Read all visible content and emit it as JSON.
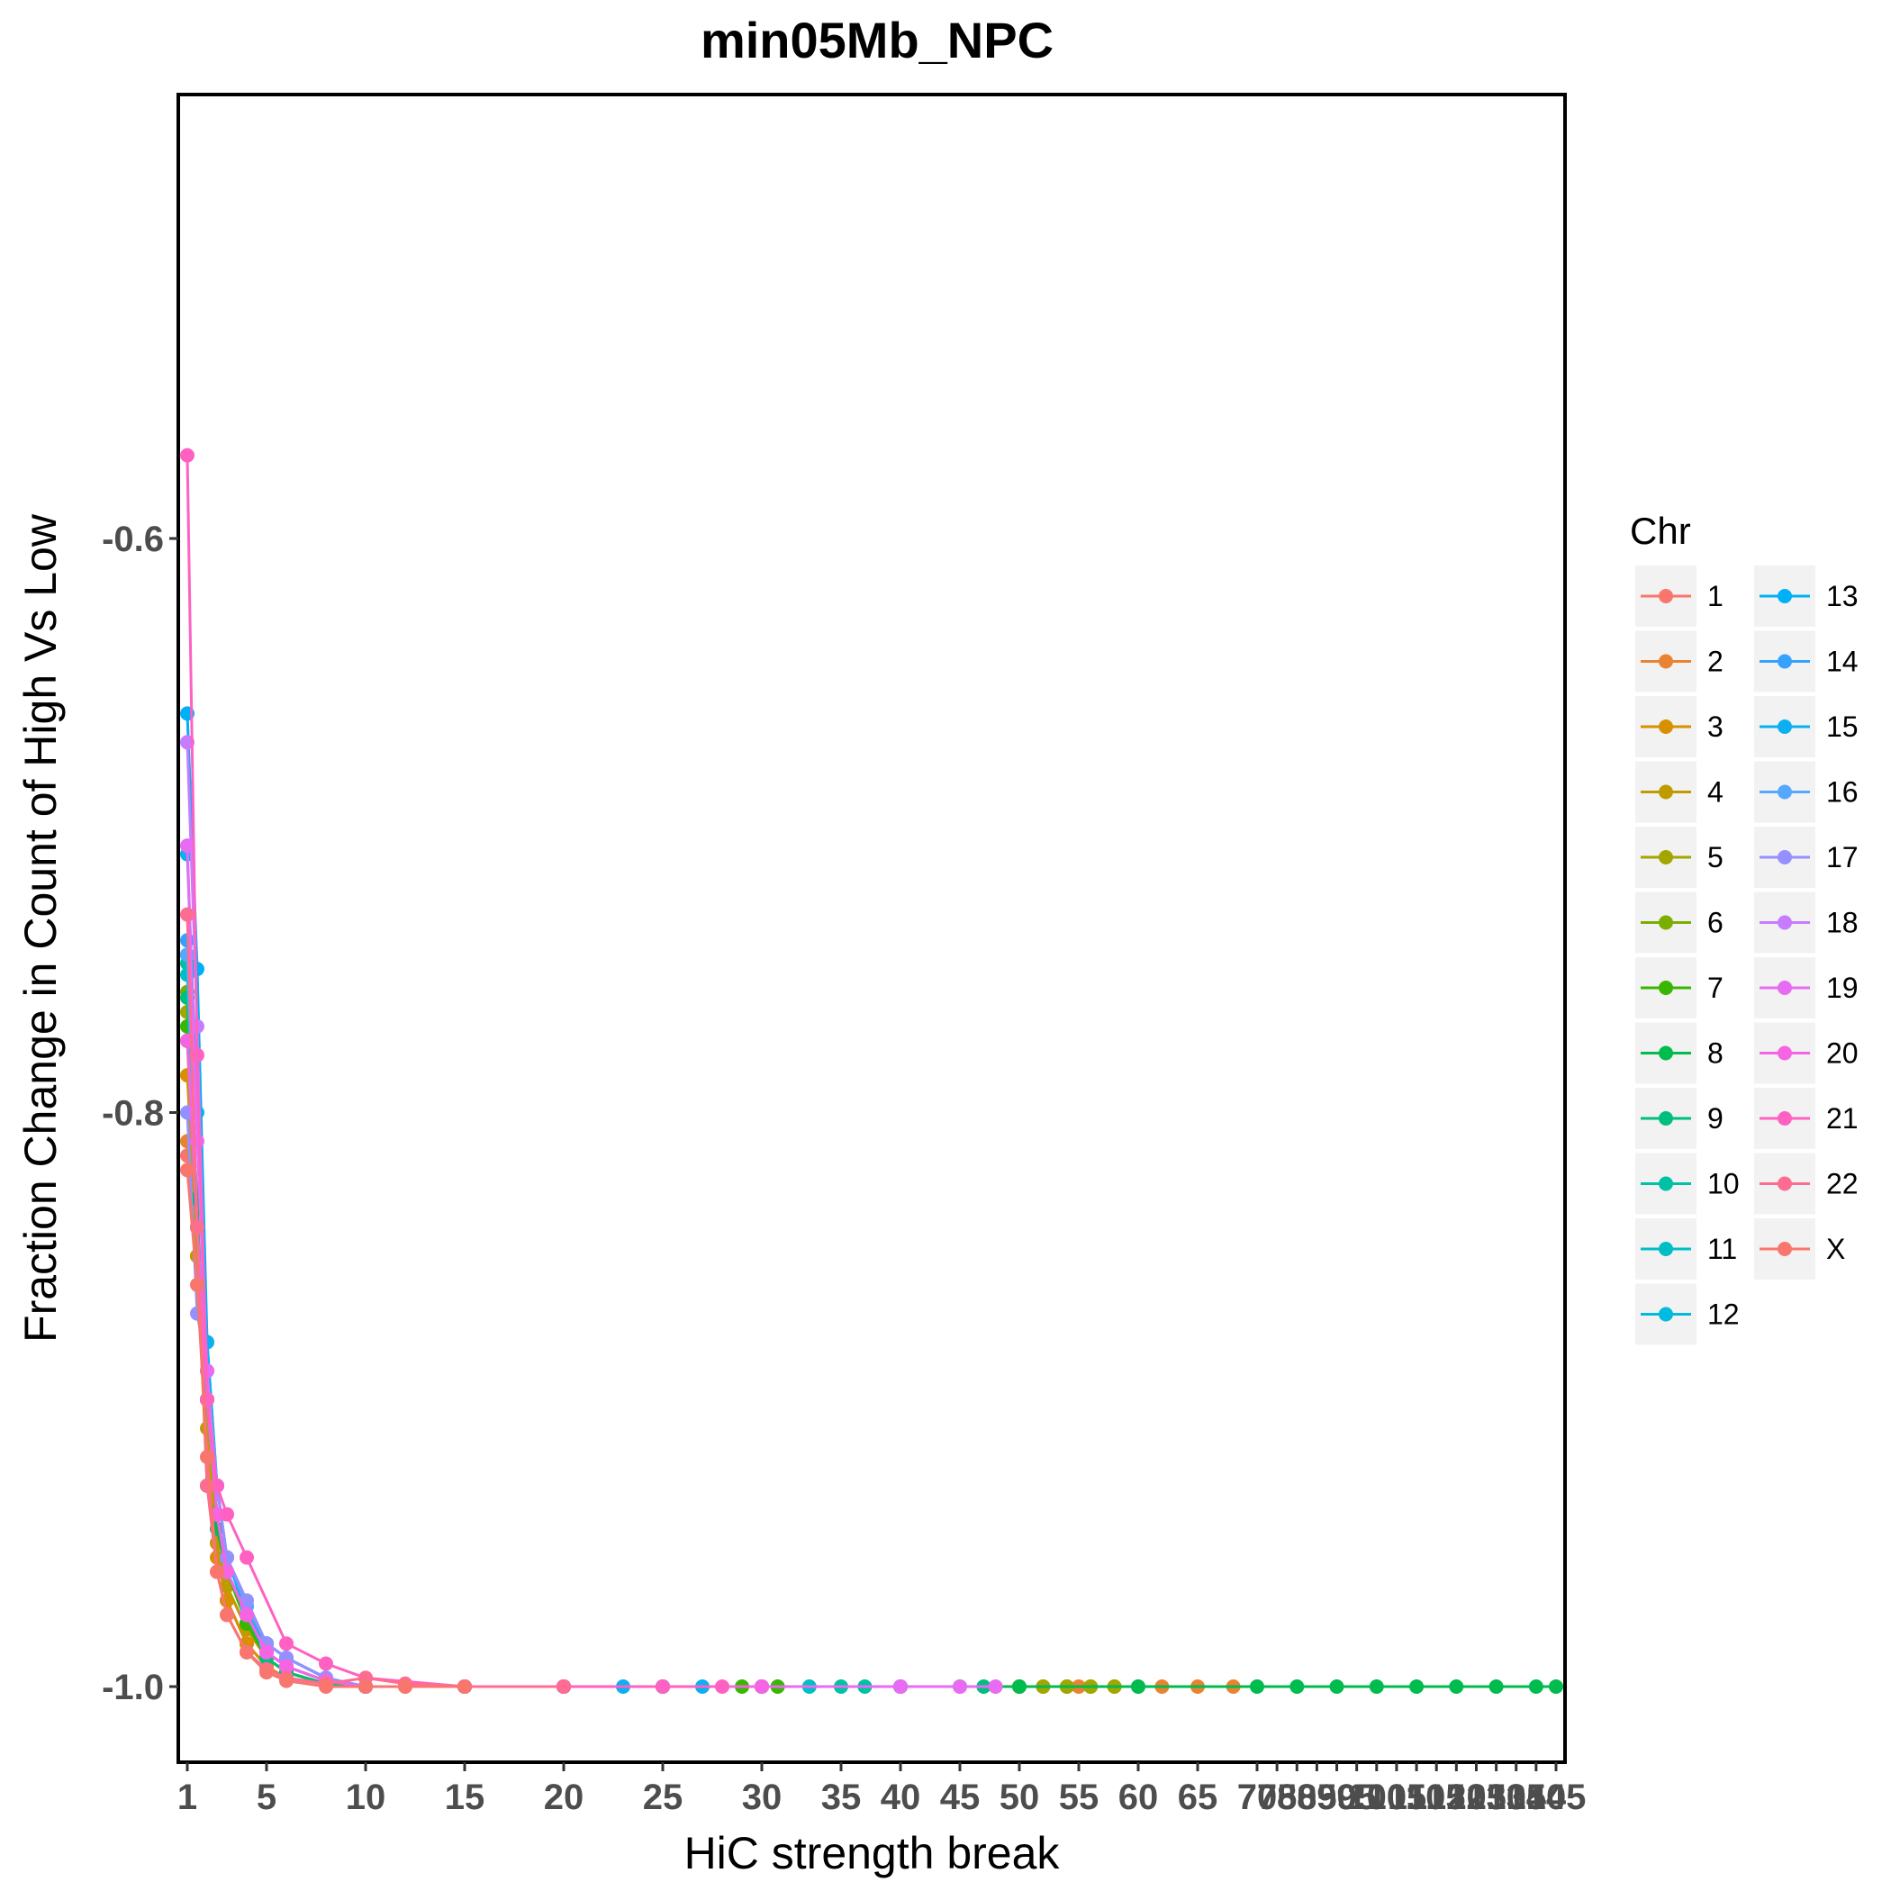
{
  "chart_data": {
    "type": "line",
    "title": "min05Mb_NPC",
    "xlabel": "HiC strength break",
    "ylabel": "Fraction Change in Count of High Vs Low",
    "ylim": [
      -1.026,
      -0.545
    ],
    "y_ticks": [
      -1.0,
      -0.8,
      -0.6
    ],
    "y_tick_labels": [
      "-1.0",
      "-0.8",
      "-0.6"
    ],
    "x_ticks": [
      1,
      5,
      10,
      15,
      20,
      25,
      30,
      35,
      40,
      45,
      50,
      55,
      60,
      65,
      70,
      75,
      80,
      85,
      90,
      95,
      100,
      105,
      110,
      115,
      120,
      125,
      130,
      135,
      140,
      145
    ],
    "x_tick_labels": [
      "1",
      "5",
      "10",
      "15",
      "20",
      "25",
      "30",
      "35",
      "40",
      "45",
      "50",
      "55",
      "60",
      "65",
      "70",
      "75",
      "80",
      "85",
      "90",
      "95",
      "100",
      "105",
      "110",
      "115",
      "120",
      "125",
      "130",
      "135",
      "140",
      "145"
    ],
    "grid": false,
    "legend": {
      "title": "Chr",
      "position": "right",
      "columns": 2
    },
    "series": [
      {
        "name": "1",
        "color": "#F8766D",
        "x": [
          1,
          1.5,
          2,
          2.5,
          3,
          4,
          5,
          6,
          8,
          10,
          12,
          15
        ],
        "y": [
          -0.815,
          -0.85,
          -0.9,
          -0.95,
          -0.97,
          -0.985,
          -0.993,
          -0.997,
          -0.999,
          -1.0,
          -1.0,
          -1.0
        ]
      },
      {
        "name": "2",
        "color": "#EA8331",
        "x": [
          1,
          1.5,
          2,
          2.5,
          3,
          4,
          5,
          6,
          8,
          10,
          15,
          20,
          30,
          40,
          50,
          55,
          60,
          62,
          65,
          68
        ],
        "y": [
          -0.81,
          -0.85,
          -0.9,
          -0.95,
          -0.965,
          -0.98,
          -0.99,
          -0.995,
          -0.999,
          -1.0,
          -1.0,
          -1.0,
          -1.0,
          -1.0,
          -1.0,
          -1.0,
          -1.0,
          -1.0,
          -1.0,
          -1.0
        ]
      },
      {
        "name": "3",
        "color": "#D89000",
        "x": [
          1,
          1.5,
          2,
          2.5,
          3,
          4,
          5,
          6,
          8,
          10,
          15,
          20
        ],
        "y": [
          -0.787,
          -0.85,
          -0.93,
          -0.955,
          -0.97,
          -0.985,
          -0.993,
          -0.997,
          -0.999,
          -1.0,
          -1.0,
          -1.0
        ]
      },
      {
        "name": "4",
        "color": "#C09B00",
        "x": [
          1,
          1.5,
          2,
          2.5,
          3,
          4,
          5,
          6,
          8,
          10,
          15,
          20,
          30,
          40,
          50,
          52,
          54,
          56,
          58
        ],
        "y": [
          -0.775,
          -0.85,
          -0.91,
          -0.95,
          -0.965,
          -0.98,
          -0.99,
          -0.995,
          -0.999,
          -1.0,
          -1.0,
          -1.0,
          -1.0,
          -1.0,
          -1.0,
          -1.0,
          -1.0,
          -1.0,
          -1.0
        ]
      },
      {
        "name": "5",
        "color": "#A3A500",
        "x": [
          1,
          1.5,
          2,
          2.5,
          3,
          4,
          5,
          6,
          8,
          10,
          15,
          20,
          30,
          40,
          50,
          52,
          54,
          56,
          58
        ],
        "y": [
          -0.765,
          -0.84,
          -0.9,
          -0.945,
          -0.96,
          -0.978,
          -0.99,
          -0.995,
          -0.999,
          -1.0,
          -1.0,
          -1.0,
          -1.0,
          -1.0,
          -1.0,
          -1.0,
          -1.0,
          -1.0,
          -1.0
        ]
      },
      {
        "name": "6",
        "color": "#7CAE00",
        "x": [
          1,
          1.5,
          2,
          2.5,
          3,
          4,
          5,
          6,
          8,
          10,
          15,
          20,
          25,
          30
        ],
        "y": [
          -0.758,
          -0.84,
          -0.9,
          -0.94,
          -0.96,
          -0.978,
          -0.99,
          -0.995,
          -0.999,
          -1.0,
          -1.0,
          -1.0,
          -1.0,
          -1.0
        ]
      },
      {
        "name": "7",
        "color": "#39B600",
        "x": [
          1,
          1.5,
          2,
          2.5,
          3,
          4,
          5,
          6,
          8,
          10,
          15,
          20,
          25,
          29,
          31
        ],
        "y": [
          -0.77,
          -0.84,
          -0.9,
          -0.94,
          -0.96,
          -0.978,
          -0.99,
          -0.995,
          -0.999,
          -1.0,
          -1.0,
          -1.0,
          -1.0,
          -1.0,
          -1.0
        ]
      },
      {
        "name": "8",
        "color": "#00BB4E",
        "x": [
          1,
          1.5,
          2,
          2.5,
          3,
          4,
          5,
          6,
          8,
          10,
          15,
          20,
          30,
          40,
          50,
          60,
          70,
          80,
          90,
          100,
          110,
          120,
          130,
          140,
          145
        ],
        "y": [
          -0.775,
          -0.83,
          -0.93,
          -0.945,
          -0.96,
          -0.975,
          -0.985,
          -0.99,
          -0.997,
          -1.0,
          -1.0,
          -1.0,
          -1.0,
          -1.0,
          -1.0,
          -1.0,
          -1.0,
          -1.0,
          -1.0,
          -1.0,
          -1.0,
          -1.0,
          -1.0,
          -1.0,
          -1.0
        ]
      },
      {
        "name": "9",
        "color": "#00BF7D",
        "x": [
          1,
          1.5,
          2,
          2.5,
          3,
          4,
          5,
          6,
          8,
          10,
          15,
          20,
          30,
          40,
          45,
          47
        ],
        "y": [
          -0.76,
          -0.84,
          -0.9,
          -0.94,
          -0.96,
          -0.975,
          -0.99,
          -0.995,
          -0.999,
          -1.0,
          -1.0,
          -1.0,
          -1.0,
          -1.0,
          -1.0,
          -1.0
        ]
      },
      {
        "name": "10",
        "color": "#00C1A3",
        "x": [
          1,
          1.5,
          2,
          2.5,
          3,
          4,
          5,
          6,
          8,
          10,
          15,
          20,
          30,
          35,
          37
        ],
        "y": [
          -0.748,
          -0.84,
          -0.9,
          -0.94,
          -0.96,
          -0.975,
          -0.988,
          -0.993,
          -0.998,
          -1.0,
          -1.0,
          -1.0,
          -1.0,
          -1.0,
          -1.0
        ]
      },
      {
        "name": "11",
        "color": "#00BFC4",
        "x": [
          1,
          1.5,
          2,
          2.5,
          3,
          4,
          5,
          6,
          8,
          10,
          15,
          20,
          25,
          30,
          33
        ],
        "y": [
          -0.752,
          -0.84,
          -0.9,
          -0.94,
          -0.96,
          -0.975,
          -0.988,
          -0.993,
          -0.998,
          -1.0,
          -1.0,
          -1.0,
          -1.0,
          -1.0,
          -1.0
        ]
      },
      {
        "name": "12",
        "color": "#00BAE0",
        "x": [
          1,
          1.5,
          2,
          2.5,
          3,
          4,
          5,
          6,
          8,
          10,
          15,
          20,
          25
        ],
        "y": [
          -0.745,
          -0.84,
          -0.9,
          -0.94,
          -0.96,
          -0.975,
          -0.988,
          -0.993,
          -0.998,
          -1.0,
          -1.0,
          -1.0,
          -1.0
        ]
      },
      {
        "name": "13",
        "color": "#00B0F6",
        "x": [
          1,
          1.5,
          2,
          2.5,
          3,
          4,
          5,
          6,
          8,
          10,
          15,
          20,
          25,
          30
        ],
        "y": [
          -0.661,
          -0.75,
          -0.88,
          -0.93,
          -0.955,
          -0.972,
          -0.985,
          -0.99,
          -0.997,
          -1.0,
          -1.0,
          -1.0,
          -1.0,
          -1.0
        ]
      },
      {
        "name": "14",
        "color": "#35A2FF",
        "x": [
          1,
          1.5,
          2,
          2.5,
          3,
          4,
          5,
          6,
          8,
          10,
          15,
          20,
          25
        ],
        "y": [
          -0.74,
          -0.84,
          -0.9,
          -0.94,
          -0.96,
          -0.975,
          -0.988,
          -0.993,
          -0.998,
          -1.0,
          -1.0,
          -1.0,
          -1.0
        ]
      },
      {
        "name": "15",
        "color": "#0CB0F0",
        "x": [
          1,
          1.5,
          2,
          2.5,
          3,
          4,
          5,
          6,
          8,
          10,
          15,
          20,
          23,
          25,
          27
        ],
        "y": [
          -0.71,
          -0.8,
          -0.88,
          -0.93,
          -0.955,
          -0.975,
          -0.985,
          -0.99,
          -0.997,
          -1.0,
          -1.0,
          -1.0,
          -1.0,
          -1.0,
          -1.0
        ]
      },
      {
        "name": "16",
        "color": "#56A8FF",
        "x": [
          1,
          1.5,
          2,
          2.5,
          3,
          4,
          5,
          6,
          8,
          10,
          15,
          20
        ],
        "y": [
          -0.745,
          -0.84,
          -0.89,
          -0.93,
          -0.955,
          -0.972,
          -0.985,
          -0.99,
          -0.997,
          -1.0,
          -1.0,
          -1.0
        ]
      },
      {
        "name": "17",
        "color": "#9590FF",
        "x": [
          1,
          1.5,
          2,
          2.5,
          3,
          4,
          5,
          6,
          8,
          10,
          15,
          20,
          30,
          40,
          45
        ],
        "y": [
          -0.8,
          -0.87,
          -0.89,
          -0.93,
          -0.955,
          -0.97,
          -0.985,
          -0.99,
          -0.997,
          -1.0,
          -1.0,
          -1.0,
          -1.0,
          -1.0,
          -1.0
        ]
      },
      {
        "name": "18",
        "color": "#C77CFF",
        "x": [
          1,
          1.5,
          2,
          2.5,
          3,
          4,
          5,
          6,
          8,
          10,
          15,
          20,
          30,
          40
        ],
        "y": [
          -0.671,
          -0.77,
          -0.9,
          -0.94,
          -0.96,
          -0.975,
          -0.988,
          -0.993,
          -0.998,
          -1.0,
          -1.0,
          -1.0,
          -1.0,
          -1.0
        ]
      },
      {
        "name": "19",
        "color": "#E76BF3",
        "x": [
          1,
          1.5,
          2,
          2.5,
          3,
          4,
          5,
          6,
          8,
          10,
          15,
          20,
          30,
          40,
          45,
          48
        ],
        "y": [
          -0.707,
          -0.81,
          -0.89,
          -0.94,
          -0.96,
          -0.975,
          -0.988,
          -0.993,
          -0.998,
          -1.0,
          -1.0,
          -1.0,
          -1.0,
          -1.0,
          -1.0,
          -1.0
        ]
      },
      {
        "name": "20",
        "color": "#F564E3",
        "x": [
          1,
          1.5,
          2,
          2.5,
          3,
          4,
          5,
          6,
          8,
          10,
          15,
          20,
          30
        ],
        "y": [
          -0.775,
          -0.84,
          -0.9,
          -0.94,
          -0.96,
          -0.975,
          -0.988,
          -0.993,
          -0.998,
          -1.0,
          -1.0,
          -1.0,
          -1.0
        ]
      },
      {
        "name": "21",
        "color": "#FF61C3",
        "x": [
          1,
          1.5,
          2,
          2.5,
          3,
          4,
          6,
          8,
          10,
          15,
          20,
          25,
          28
        ],
        "y": [
          -0.571,
          -0.78,
          -0.9,
          -0.93,
          -0.94,
          -0.955,
          -0.985,
          -0.992,
          -0.997,
          -1.0,
          -1.0,
          -1.0,
          -1.0
        ]
      },
      {
        "name": "22",
        "color": "#FF6C91",
        "x": [
          1,
          1.5,
          2,
          2.5,
          3,
          4,
          5,
          6,
          8,
          10,
          12,
          15,
          20
        ],
        "y": [
          -0.731,
          -0.84,
          -0.93,
          -0.96,
          -0.975,
          -0.988,
          -0.994,
          -0.997,
          -0.999,
          -0.997,
          -0.999,
          -1.0,
          -1.0
        ]
      },
      {
        "name": "X",
        "color": "#F8766D",
        "x": [
          1,
          1.5,
          2,
          2.5,
          3,
          4,
          5,
          6,
          8,
          10,
          12,
          15
        ],
        "y": [
          -0.82,
          -0.86,
          -0.92,
          -0.96,
          -0.975,
          -0.988,
          -0.995,
          -0.998,
          -1.0,
          -1.0,
          -1.0,
          -1.0
        ]
      }
    ]
  }
}
